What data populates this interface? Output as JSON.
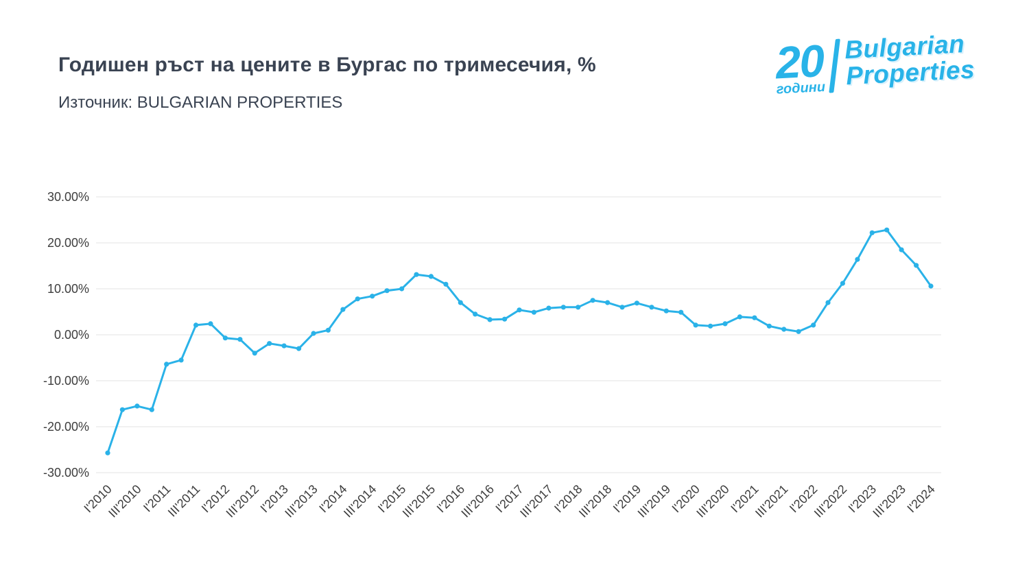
{
  "header": {
    "title": "Годишен ръст на цените в Бургас по тримесечия, %",
    "source": "Източник: BULGARIAN PROPERTIES"
  },
  "logo": {
    "number": "20",
    "years_label": "години",
    "brand_line1": "Bulgarian",
    "brand_line2": "Properties",
    "color": "#29b3e8"
  },
  "chart_data": {
    "type": "line",
    "title": "Годишен ръст на цените в Бургас по тримесечия, %",
    "subtitle": "Източник: BULGARIAN PROPERTIES",
    "line_color": "#2ab2e8",
    "marker": "circle",
    "grid": true,
    "grid_color": "#e3e3e3",
    "axis_color": "#3d3d3d",
    "legend": "none",
    "ylim": [
      -30,
      30
    ],
    "ytick_step": 10,
    "x_tick_every": 2,
    "y_ticks": [
      {
        "value": 30,
        "label": "30.00%"
      },
      {
        "value": 20,
        "label": "20.00%"
      },
      {
        "value": 10,
        "label": "10.00%"
      },
      {
        "value": 0,
        "label": "0.00%"
      },
      {
        "value": -10,
        "label": "-10.00%"
      },
      {
        "value": -20,
        "label": "-20.00%"
      },
      {
        "value": -30,
        "label": "-30.00%"
      }
    ],
    "x": [
      "I'2010",
      "II'2010",
      "III'2010",
      "IV'2010",
      "I'2011",
      "II'2011",
      "III'2011",
      "IV'2011",
      "I'2012",
      "II'2012",
      "III'2012",
      "IV'2012",
      "I'2013",
      "II'2013",
      "III'2013",
      "IV'2013",
      "I'2014",
      "II'2014",
      "III'2014",
      "IV'2014",
      "I'2015",
      "II'2015",
      "III'2015",
      "IV'2015",
      "I'2016",
      "II'2016",
      "III'2016",
      "IV'2016",
      "I'2017",
      "II'2017",
      "III'2017",
      "IV'2017",
      "I'2018",
      "II'2018",
      "III'2018",
      "IV'2018",
      "I'2019",
      "II'2019",
      "III'2019",
      "IV'2019",
      "I'2020",
      "II'2020",
      "III'2020",
      "IV'2020",
      "I'2021",
      "II'2021",
      "III'2021",
      "IV'2021",
      "I'2022",
      "II'2022",
      "III'2022",
      "IV'2022",
      "I'2023",
      "II'2023",
      "III'2023",
      "IV'2023",
      "I'2024"
    ],
    "values": [
      -25.7,
      -16.3,
      -15.5,
      -16.3,
      -6.4,
      -5.5,
      2.1,
      2.4,
      -0.7,
      -1.0,
      -4.0,
      -1.9,
      -2.4,
      -3.0,
      0.3,
      1.0,
      5.5,
      7.8,
      8.4,
      9.6,
      10.0,
      13.1,
      12.7,
      11.0,
      7.0,
      4.5,
      3.3,
      3.4,
      5.4,
      4.9,
      5.8,
      6.0,
      6.0,
      7.5,
      7.0,
      6.0,
      6.9,
      6.0,
      5.2,
      4.9,
      2.1,
      1.9,
      2.4,
      3.9,
      3.7,
      1.9,
      1.2,
      0.7,
      2.1,
      7.0,
      11.2,
      16.4,
      22.2,
      22.8,
      18.5,
      15.1,
      10.6
    ]
  }
}
